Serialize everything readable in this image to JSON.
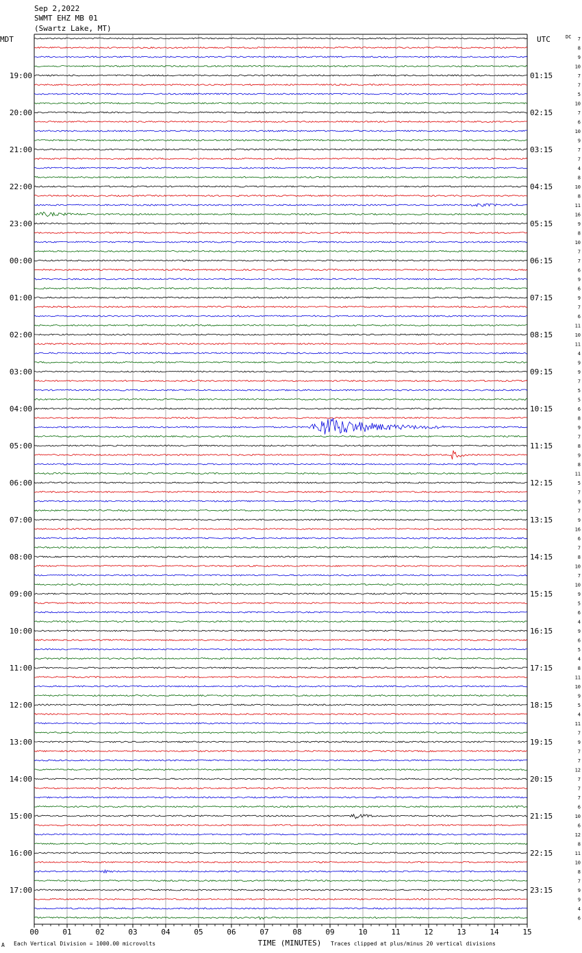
{
  "header": {
    "date": "Sep 2,2022",
    "station": "SWMT EHZ MB 01",
    "location": "(Swartz Lake, MT)",
    "left_tz": "MDT",
    "right_tz": "UTC",
    "dc_label": "DC"
  },
  "footer": {
    "logo_mark": "A",
    "scale_note": "Each Vertical Division = 1000.00 microvolts",
    "clip_note": "Traces clipped at plus/minus 20 vertical divisions"
  },
  "colors": {
    "trace_cycle": [
      "#000000",
      "#dd0000",
      "#0000dd",
      "#006600"
    ],
    "grid": "#777777"
  },
  "chart_data": {
    "type": "line",
    "title": "",
    "xlabel": "TIME (MINUTES)",
    "x_ticks": [
      "00",
      "01",
      "02",
      "03",
      "04",
      "05",
      "06",
      "07",
      "08",
      "09",
      "10",
      "11",
      "12",
      "13",
      "14",
      "15"
    ],
    "xlim": [
      0,
      15
    ],
    "grid": true,
    "left_labels": [
      "19:00",
      "20:00",
      "21:00",
      "22:00",
      "23:00",
      "00:00",
      "01:00",
      "02:00",
      "03:00",
      "04:00",
      "05:00",
      "06:00",
      "07:00",
      "08:00",
      "09:00",
      "10:00",
      "11:00",
      "12:00",
      "13:00",
      "14:00",
      "15:00",
      "16:00",
      "17:00"
    ],
    "right_labels": [
      "01:15",
      "02:15",
      "03:15",
      "04:15",
      "05:15",
      "06:15",
      "07:15",
      "08:15",
      "09:15",
      "10:15",
      "11:15",
      "12:15",
      "13:15",
      "14:15",
      "15:15",
      "16:15",
      "17:15",
      "18:15",
      "19:15",
      "20:15",
      "21:15",
      "22:15",
      "23:15"
    ],
    "dc_offsets": [
      "7",
      "8",
      "9",
      "10",
      "7",
      "7",
      "5",
      "10",
      "7",
      "6",
      "10",
      "9",
      "7",
      "7",
      "4",
      "8",
      "10",
      "8",
      "11",
      "16",
      "9",
      "8",
      "10",
      "7",
      "7",
      "6",
      "9",
      "6",
      "9",
      "7",
      "6",
      "11",
      "10",
      "11",
      "4",
      "9",
      "9",
      "7",
      "5",
      "5",
      "6",
      "8",
      "9",
      "7",
      "8",
      "9",
      "8",
      "11",
      "5",
      "7",
      "9",
      "7",
      "9",
      "16",
      "6",
      "7",
      "8",
      "10",
      "7",
      "10",
      "9",
      "5",
      "6",
      "4",
      "9",
      "6",
      "5",
      "4",
      "8",
      "11",
      "10",
      "9",
      "5",
      "4",
      "11",
      "7",
      "9",
      "7",
      "7",
      "12",
      "7",
      "7",
      "7",
      "6",
      "10",
      "6",
      "12",
      "8",
      "11",
      "10",
      "8",
      "7",
      "9",
      "9",
      "4",
      "6"
    ],
    "events": [
      {
        "row": 19,
        "start_min": 0.0,
        "end_min": 2.0,
        "amp": 2.5
      },
      {
        "row": 18,
        "start_min": 13.2,
        "end_min": 15.0,
        "amp": 1.8
      },
      {
        "row": 42,
        "start_min": 8.3,
        "end_min": 12.5,
        "amp": 14
      },
      {
        "row": 45,
        "start_min": 12.65,
        "end_min": 13.2,
        "amp": 7
      },
      {
        "row": 84,
        "start_min": 9.6,
        "end_min": 10.6,
        "amp": 3.5
      },
      {
        "row": 83,
        "start_min": 14.6,
        "end_min": 15.0,
        "amp": 2
      },
      {
        "row": 90,
        "start_min": 2.0,
        "end_min": 2.7,
        "amp": 1.5
      },
      {
        "row": 95,
        "start_min": 6.8,
        "end_min": 7.3,
        "amp": 2.5
      }
    ]
  }
}
